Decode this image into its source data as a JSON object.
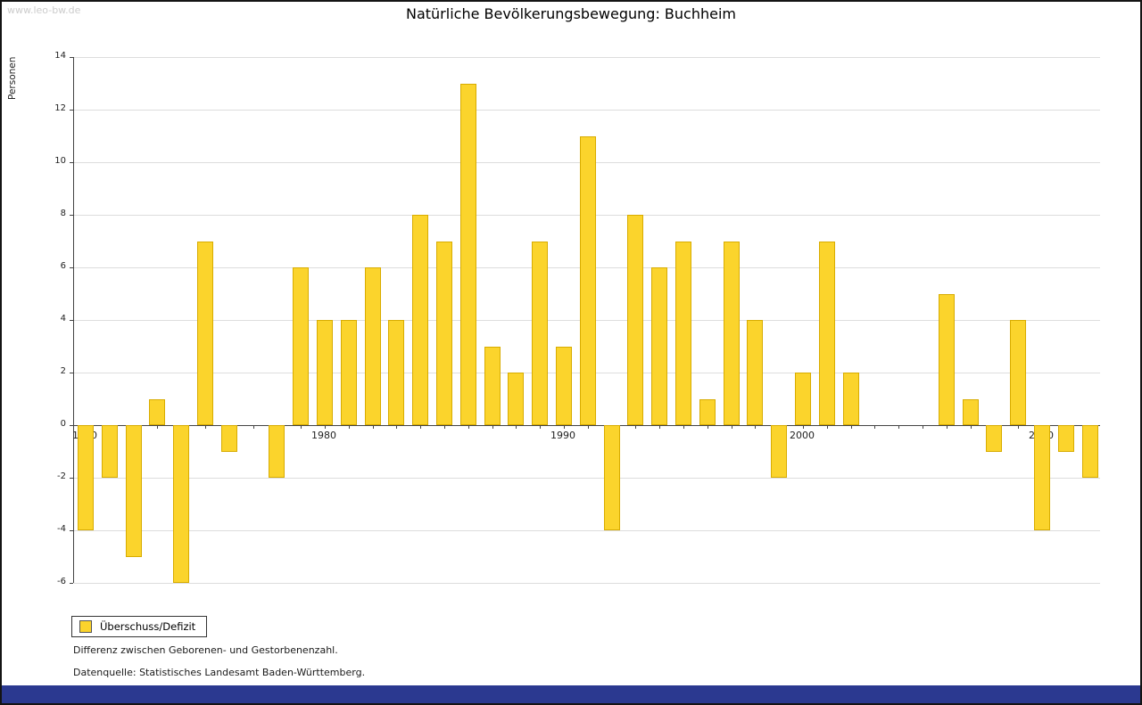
{
  "watermark": "www.leo-bw.de",
  "title": "Natürliche Bevölkerungsbewegung: Buchheim",
  "legend": {
    "label": "Überschuss/Defizit"
  },
  "notes": [
    "Differenz zwischen Geborenen- und Gestorbenenzahl.",
    "Datenquelle: Statistisches Landesamt Baden-Württemberg."
  ],
  "colors": {
    "bar_fill": "#FBD42C",
    "bar_border": "#D8AC00",
    "footer_bar": "#2B3990",
    "watermark": "#CCCCCC"
  },
  "chart_data": {
    "type": "bar",
    "title": "Natürliche Bevölkerungsbewegung: Buchheim",
    "ylabel": "Personen",
    "xlabel": "",
    "ylim": [
      -6,
      14
    ],
    "yticks": [
      14,
      12,
      10,
      8,
      6,
      4,
      2,
      0,
      -2,
      -4,
      -6
    ],
    "decade_ticks": [
      "1970",
      "1980",
      "1990",
      "2000",
      "2010"
    ],
    "grid": "horizontal",
    "legend_position": "bottom-left",
    "series_name": "Überschuss/Defizit",
    "years": [
      1970,
      1971,
      1972,
      1973,
      1974,
      1975,
      1976,
      1977,
      1978,
      1979,
      1980,
      1981,
      1982,
      1983,
      1984,
      1985,
      1986,
      1987,
      1988,
      1989,
      1990,
      1991,
      1992,
      1993,
      1994,
      1995,
      1996,
      1997,
      1998,
      1999,
      2000,
      2001,
      2002,
      2003,
      2004,
      2005,
      2006,
      2007,
      2008,
      2009,
      2010,
      2011,
      2012
    ],
    "values": [
      -4,
      -2,
      -5,
      1,
      -6,
      7,
      -1,
      0,
      -2,
      6,
      4,
      4,
      6,
      4,
      8,
      7,
      13,
      3,
      2,
      7,
      3,
      11,
      -4,
      8,
      6,
      7,
      1,
      7,
      4,
      -2,
      2,
      7,
      2,
      0,
      0,
      0,
      5,
      1,
      -1,
      4,
      -4,
      -1,
      -2
    ]
  }
}
